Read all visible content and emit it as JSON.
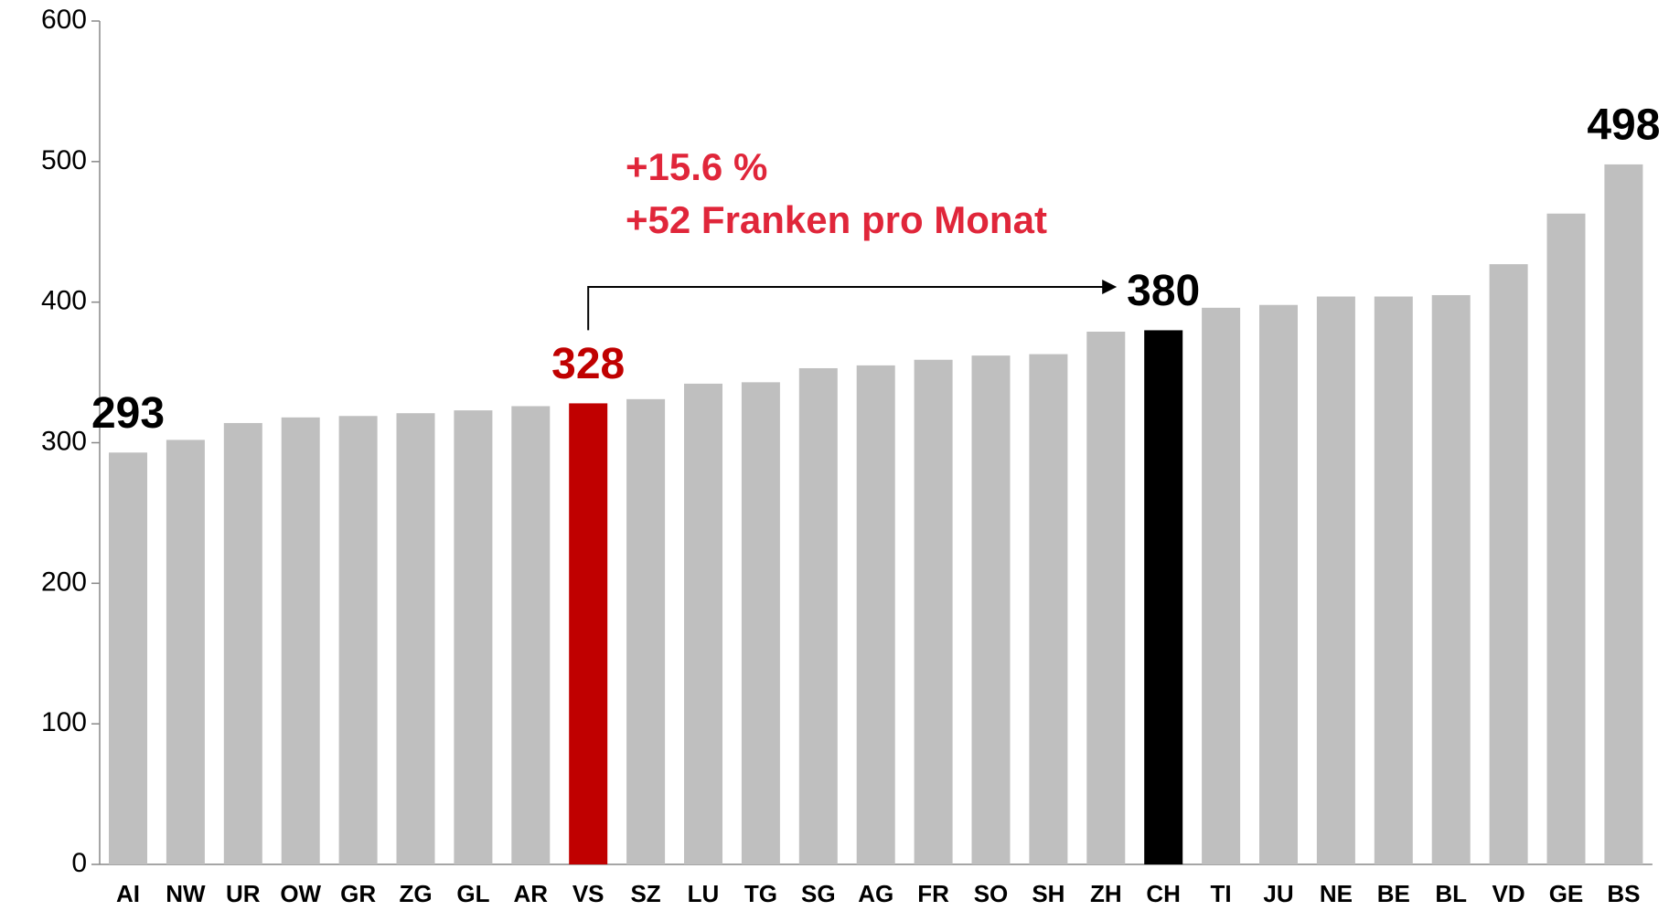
{
  "chart_data": {
    "type": "bar",
    "categories": [
      "AI",
      "NW",
      "UR",
      "OW",
      "GR",
      "ZG",
      "GL",
      "AR",
      "VS",
      "SZ",
      "LU",
      "TG",
      "SG",
      "AG",
      "FR",
      "SO",
      "SH",
      "ZH",
      "CH",
      "TI",
      "JU",
      "NE",
      "BE",
      "BL",
      "VD",
      "GE",
      "BS"
    ],
    "values": [
      293,
      302,
      314,
      318,
      319,
      321,
      323,
      326,
      328,
      331,
      342,
      343,
      353,
      355,
      359,
      362,
      363,
      379,
      380,
      396,
      398,
      404,
      404,
      405,
      427,
      463,
      498
    ],
    "value_labels": [
      293,
      null,
      null,
      null,
      null,
      null,
      null,
      null,
      328,
      null,
      null,
      null,
      null,
      null,
      null,
      null,
      null,
      null,
      380,
      null,
      null,
      null,
      null,
      null,
      null,
      null,
      498
    ],
    "color": "#bfbfbf",
    "colors": [
      "#bfbfbf",
      "#bfbfbf",
      "#bfbfbf",
      "#bfbfbf",
      "#bfbfbf",
      "#bfbfbf",
      "#bfbfbf",
      "#bfbfbf",
      "#c00000",
      "#bfbfbf",
      "#bfbfbf",
      "#bfbfbf",
      "#bfbfbf",
      "#bfbfbf",
      "#bfbfbf",
      "#bfbfbf",
      "#bfbfbf",
      "#bfbfbf",
      "#000000",
      "#bfbfbf",
      "#bfbfbf",
      "#bfbfbf",
      "#bfbfbf",
      "#bfbfbf",
      "#bfbfbf",
      "#bfbfbf",
      "#bfbfbf"
    ],
    "annotations": [
      "+15.6 %",
      "+52 Franken pro Monat"
    ],
    "ylim": [
      0,
      600
    ],
    "yticks": [
      0,
      100,
      200,
      300,
      400,
      500,
      600
    ],
    "grid": false
  }
}
